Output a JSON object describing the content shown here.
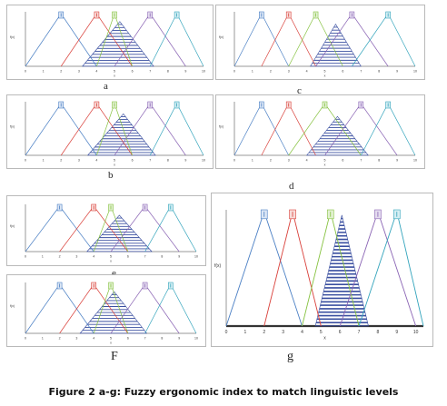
{
  "figure": {
    "caption": "Figure 2 a-g: Fuzzy ergonomic index to match linguistic levels",
    "y_axis_label": "f(x)",
    "x_axis_letter": "x",
    "tick_labels": [
      "0",
      "1",
      "2",
      "3",
      "4",
      "5",
      "6",
      "7",
      "8",
      "9",
      "10"
    ],
    "triangle_colors": [
      "#4a7fc4",
      "#d9403a",
      "#86c240",
      "#8a64b4",
      "#33a4bc"
    ],
    "tag_fills": [
      "#dbe6f5",
      "#f8dcd9",
      "#e2f1d2",
      "#e4dcef",
      "#d5eef3"
    ],
    "hatch_color": "#3a4fa0",
    "panel_labels": [
      "a",
      "c",
      "b",
      "d",
      "e",
      "F",
      "g"
    ]
  },
  "chart_data": [
    {
      "panel": "a",
      "type": "area",
      "x": [
        0,
        1,
        2,
        3,
        4,
        5,
        6,
        7,
        8,
        9,
        10
      ],
      "series": [
        {
          "points": [
            [
              0,
              0
            ],
            [
              2,
              1
            ],
            [
              4,
              0
            ]
          ]
        },
        {
          "points": [
            [
              2,
              0
            ],
            [
              4,
              1
            ],
            [
              6,
              0
            ]
          ]
        },
        {
          "points": [
            [
              4,
              0
            ],
            [
              5,
              1
            ],
            [
              6,
              0
            ]
          ]
        },
        {
          "points": [
            [
              5,
              0
            ],
            [
              7,
              1
            ],
            [
              9,
              0
            ]
          ]
        },
        {
          "points": [
            [
              7,
              0
            ],
            [
              8.5,
              1
            ],
            [
              10,
              0
            ]
          ]
        }
      ],
      "shaded_region": [
        [
          3.2,
          0
        ],
        [
          5.3,
          0.85
        ],
        [
          7.2,
          0
        ]
      ]
    },
    {
      "panel": "c",
      "type": "area",
      "x": [
        0,
        1,
        2,
        3,
        4,
        5,
        6,
        7,
        8,
        9,
        10
      ],
      "series": [
        {
          "points": [
            [
              0,
              0
            ],
            [
              1.5,
              1
            ],
            [
              3,
              0
            ]
          ]
        },
        {
          "points": [
            [
              1.5,
              0
            ],
            [
              3,
              1
            ],
            [
              4.5,
              0
            ]
          ]
        },
        {
          "points": [
            [
              3,
              0
            ],
            [
              4.5,
              1
            ],
            [
              6,
              0
            ]
          ]
        },
        {
          "points": [
            [
              4.5,
              0
            ],
            [
              6.5,
              1
            ],
            [
              8.5,
              0
            ]
          ]
        },
        {
          "points": [
            [
              6.5,
              0
            ],
            [
              8.5,
              1
            ],
            [
              10,
              0
            ]
          ]
        }
      ],
      "shaded_region": [
        [
          4.2,
          0
        ],
        [
          5.6,
          0.8
        ],
        [
          7,
          0
        ]
      ]
    },
    {
      "panel": "b",
      "type": "area",
      "x": [
        0,
        1,
        2,
        3,
        4,
        5,
        6,
        7,
        8,
        9,
        10
      ],
      "series": [
        {
          "points": [
            [
              0,
              0
            ],
            [
              2,
              1
            ],
            [
              4,
              0
            ]
          ]
        },
        {
          "points": [
            [
              2,
              0
            ],
            [
              4,
              1
            ],
            [
              6,
              0
            ]
          ]
        },
        {
          "points": [
            [
              4,
              0
            ],
            [
              5,
              1
            ],
            [
              6,
              0
            ]
          ]
        },
        {
          "points": [
            [
              5,
              0
            ],
            [
              7,
              1
            ],
            [
              9,
              0
            ]
          ]
        },
        {
          "points": [
            [
              7,
              0
            ],
            [
              8.5,
              1
            ],
            [
              10,
              0
            ]
          ]
        }
      ],
      "shaded_region": [
        [
          3.5,
          0
        ],
        [
          5.5,
          0.8
        ],
        [
          7.3,
          0
        ]
      ]
    },
    {
      "panel": "d",
      "type": "area",
      "x": [
        0,
        1,
        2,
        3,
        4,
        5,
        6,
        7,
        8,
        9,
        10
      ],
      "series": [
        {
          "points": [
            [
              0,
              0
            ],
            [
              1.5,
              1
            ],
            [
              3,
              0
            ]
          ]
        },
        {
          "points": [
            [
              1.5,
              0
            ],
            [
              3,
              1
            ],
            [
              4.5,
              0
            ]
          ]
        },
        {
          "points": [
            [
              3,
              0
            ],
            [
              5,
              1
            ],
            [
              7,
              0
            ]
          ]
        },
        {
          "points": [
            [
              5,
              0
            ],
            [
              7,
              1
            ],
            [
              9,
              0
            ]
          ]
        },
        {
          "points": [
            [
              7,
              0
            ],
            [
              8.5,
              1
            ],
            [
              10,
              0
            ]
          ]
        }
      ],
      "shaded_region": [
        [
          4,
          0
        ],
        [
          5.7,
          0.75
        ],
        [
          7.4,
          0
        ]
      ]
    },
    {
      "panel": "e",
      "type": "area",
      "x": [
        0,
        1,
        2,
        3,
        4,
        5,
        6,
        7,
        8,
        9,
        10
      ],
      "series": [
        {
          "points": [
            [
              0,
              0
            ],
            [
              2,
              1
            ],
            [
              4,
              0
            ]
          ]
        },
        {
          "points": [
            [
              2,
              0
            ],
            [
              4,
              1
            ],
            [
              6,
              0
            ]
          ]
        },
        {
          "points": [
            [
              4,
              0
            ],
            [
              5,
              1
            ],
            [
              6,
              0
            ]
          ]
        },
        {
          "points": [
            [
              5,
              0
            ],
            [
              7,
              1
            ],
            [
              9,
              0
            ]
          ]
        },
        {
          "points": [
            [
              7,
              0
            ],
            [
              8.5,
              1
            ],
            [
              10,
              0
            ]
          ]
        }
      ],
      "shaded_region": [
        [
          3.6,
          0
        ],
        [
          5.5,
          0.8
        ],
        [
          7.4,
          0
        ]
      ]
    },
    {
      "panel": "F",
      "type": "area",
      "x": [
        0,
        1,
        2,
        3,
        4,
        5,
        6,
        7,
        8,
        9,
        10
      ],
      "series": [
        {
          "points": [
            [
              0,
              0
            ],
            [
              2,
              1
            ],
            [
              4,
              0
            ]
          ]
        },
        {
          "points": [
            [
              2,
              0
            ],
            [
              4,
              1
            ],
            [
              6,
              0
            ]
          ]
        },
        {
          "points": [
            [
              4,
              0
            ],
            [
              5,
              1
            ],
            [
              6,
              0
            ]
          ]
        },
        {
          "points": [
            [
              5,
              0
            ],
            [
              7,
              1
            ],
            [
              9,
              0
            ]
          ]
        },
        {
          "points": [
            [
              7,
              0
            ],
            [
              8.5,
              1
            ],
            [
              10,
              0
            ]
          ]
        }
      ],
      "shaded_region": [
        [
          3.2,
          0
        ],
        [
          5.2,
          0.85
        ],
        [
          7.1,
          0
        ]
      ]
    },
    {
      "panel": "g",
      "type": "area",
      "x": [
        0,
        1,
        2,
        3,
        4,
        5,
        6,
        7,
        8,
        9,
        10
      ],
      "series": [
        {
          "points": [
            [
              0,
              0
            ],
            [
              2,
              1
            ],
            [
              4,
              0
            ]
          ]
        },
        {
          "points": [
            [
              2,
              0
            ],
            [
              3.5,
              1
            ],
            [
              5,
              0
            ]
          ]
        },
        {
          "points": [
            [
              4,
              0
            ],
            [
              5.5,
              1
            ],
            [
              7,
              0
            ]
          ]
        },
        {
          "points": [
            [
              6,
              0
            ],
            [
              8,
              1
            ],
            [
              10,
              0
            ]
          ]
        },
        {
          "points": [
            [
              7,
              0
            ],
            [
              9,
              1
            ],
            [
              11,
              0
            ]
          ]
        }
      ],
      "shaded_region": [
        [
          4.7,
          0
        ],
        [
          6.1,
          0.97
        ],
        [
          7.5,
          0
        ]
      ]
    }
  ]
}
